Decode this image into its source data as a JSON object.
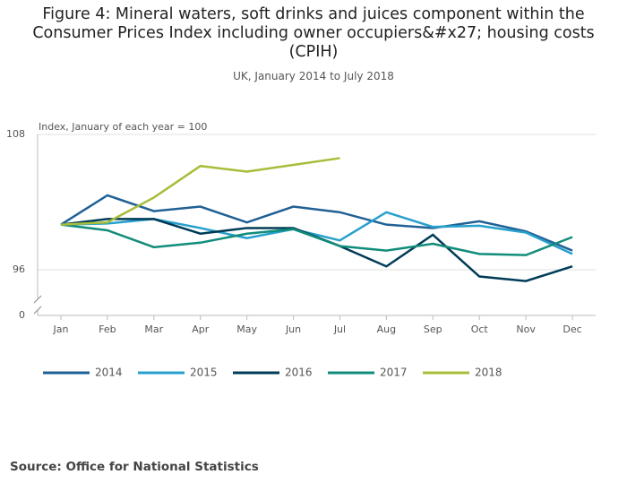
{
  "chart_data": {
    "type": "line",
    "title": "Figure 4: Mineral waters, soft drinks and juices component within the Consumer Prices Index including owner occupiers&#x27; housing costs (CPIH)",
    "subtitle": "UK, January 2014 to July 2018",
    "y_label": "Index, January of each year = 100",
    "source": "Source: Office for National Statistics",
    "categories": [
      "Jan",
      "Feb",
      "Mar",
      "Apr",
      "May",
      "Jun",
      "Jul",
      "Aug",
      "Sep",
      "Oct",
      "Nov",
      "Dec"
    ],
    "ylim": [
      0,
      108
    ],
    "yticks": [
      0,
      96,
      108
    ],
    "y_axis_break": true,
    "grid": true,
    "series": [
      {
        "name": "2014",
        "color": "#206095",
        "values": [
          100.0,
          102.6,
          101.2,
          101.6,
          100.2,
          101.6,
          101.1,
          100.0,
          99.7,
          100.3,
          99.4,
          97.7
        ]
      },
      {
        "name": "2015",
        "color": "#27a0cc",
        "values": [
          100.0,
          100.1,
          100.5,
          99.7,
          98.8,
          99.6,
          98.6,
          101.1,
          99.8,
          99.9,
          99.3,
          97.4
        ]
      },
      {
        "name": "2016",
        "color": "#003c57",
        "values": [
          100.0,
          100.5,
          100.5,
          99.2,
          99.7,
          99.7,
          98.1,
          96.3,
          99.1,
          95.4,
          95.0,
          96.3
        ]
      },
      {
        "name": "2017",
        "color": "#118c7b",
        "values": [
          100.0,
          99.5,
          98.0,
          98.4,
          99.2,
          99.6,
          98.1,
          97.7,
          98.3,
          97.4,
          97.3,
          98.9
        ]
      },
      {
        "name": "2018",
        "color": "#a8bd3a",
        "values": [
          100.0,
          100.2,
          102.4,
          105.2,
          104.7,
          105.3,
          105.9,
          null,
          null,
          null,
          null,
          null
        ]
      }
    ]
  }
}
